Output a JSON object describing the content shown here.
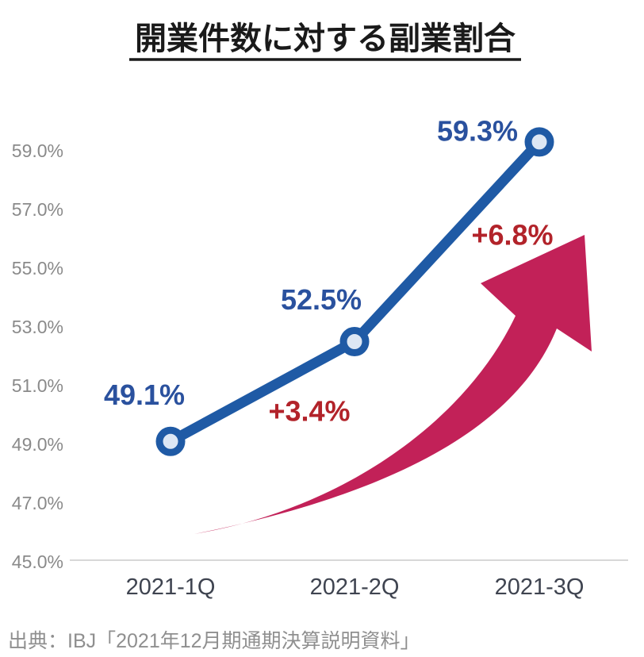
{
  "chart_data": {
    "type": "line",
    "title": "開業件数に対する副業割合",
    "categories": [
      "2021-1Q",
      "2021-2Q",
      "2021-3Q"
    ],
    "values": [
      49.1,
      52.5,
      59.3
    ],
    "point_labels": [
      "49.1%",
      "52.5%",
      "59.3%"
    ],
    "delta_labels": [
      "+3.4%",
      "+6.8%"
    ],
    "y_tick_labels": [
      "59.0%",
      "57.0%",
      "55.0%",
      "53.0%",
      "51.0%",
      "49.0%",
      "47.0%",
      "45.0%"
    ],
    "ylim": [
      45,
      60
    ],
    "grid": false,
    "legend": false,
    "annotations": [
      "upward-swoosh-arrow"
    ],
    "colors": {
      "line": "#1f5aa5",
      "marker_fill": "#dde7f4",
      "value_label": "#2a519e",
      "delta_label": "#b2232a",
      "arrow": "#c22158",
      "axis_line": "#d8d8d8",
      "y_tick": "#8a8a8a",
      "x_label": "#3f4450",
      "title": "#1a1a1a",
      "source": "#8f8f8f"
    }
  },
  "source": "出典：IBJ「2021年12月期通期決算説明資料」"
}
